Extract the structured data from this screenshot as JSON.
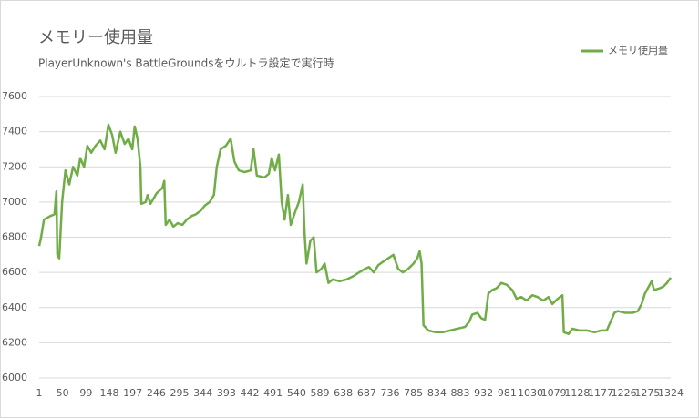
{
  "chart_data": {
    "type": "line",
    "title": "メモリー使用量",
    "subtitle": "PlayerUnknown's BattleGroundsをウルトラ設定で実行時",
    "legend": "top-right",
    "grid": true,
    "xlim": [
      1,
      1324
    ],
    "xticks": [
      1,
      50,
      99,
      148,
      197,
      246,
      295,
      344,
      393,
      442,
      491,
      540,
      589,
      638,
      687,
      736,
      785,
      834,
      883,
      932,
      981,
      1030,
      1079,
      1128,
      1177,
      1226,
      1275,
      1324
    ],
    "ylim": [
      6000,
      7600
    ],
    "yticks": [
      6000,
      6200,
      6400,
      6600,
      6800,
      7000,
      7200,
      7400,
      7600
    ],
    "x": [
      1,
      5,
      11,
      24,
      33,
      37,
      39,
      43,
      49,
      56,
      64,
      72,
      81,
      87,
      95,
      102,
      110,
      119,
      129,
      138,
      146,
      154,
      161,
      171,
      180,
      188,
      196,
      201,
      207,
      213,
      215,
      224,
      228,
      234,
      247,
      259,
      263,
      266,
      274,
      282,
      291,
      301,
      310,
      320,
      329,
      339,
      348,
      358,
      367,
      373,
      381,
      392,
      402,
      410,
      419,
      431,
      444,
      450,
      457,
      473,
      482,
      488,
      495,
      503,
      509,
      515,
      522,
      528,
      538,
      545,
      553,
      557,
      561,
      569,
      576,
      582,
      592,
      599,
      607,
      616,
      630,
      645,
      660,
      671,
      683,
      692,
      702,
      711,
      721,
      732,
      743,
      753,
      763,
      774,
      785,
      793,
      798,
      802,
      806,
      816,
      831,
      846,
      862,
      877,
      893,
      902,
      908,
      919,
      927,
      935,
      942,
      950,
      959,
      969,
      980,
      992,
      1001,
      1011,
      1022,
      1034,
      1045,
      1057,
      1068,
      1076,
      1087,
      1097,
      1100,
      1110,
      1118,
      1133,
      1148,
      1164,
      1179,
      1190,
      1198,
      1206,
      1213,
      1229,
      1244,
      1255,
      1263,
      1270,
      1278,
      1284,
      1289,
      1301,
      1309,
      1316,
      1324
    ],
    "series": [
      {
        "name": "メモリ使用量",
        "color": "#70ad47",
        "values": [
          6750,
          6800,
          6900,
          6920,
          6930,
          7060,
          6700,
          6680,
          7000,
          7180,
          7100,
          7200,
          7150,
          7250,
          7200,
          7320,
          7280,
          7320,
          7350,
          7300,
          7440,
          7380,
          7280,
          7400,
          7330,
          7360,
          7300,
          7430,
          7360,
          7200,
          6990,
          7000,
          7040,
          6990,
          7050,
          7080,
          7120,
          6870,
          6900,
          6860,
          6880,
          6870,
          6900,
          6920,
          6930,
          6950,
          6980,
          7000,
          7040,
          7200,
          7300,
          7320,
          7360,
          7230,
          7180,
          7170,
          7180,
          7300,
          7150,
          7140,
          7160,
          7250,
          7180,
          7270,
          7000,
          6900,
          7040,
          6870,
          6950,
          7000,
          7100,
          6820,
          6650,
          6780,
          6800,
          6600,
          6620,
          6650,
          6540,
          6560,
          6550,
          6560,
          6580,
          6600,
          6620,
          6630,
          6600,
          6640,
          6660,
          6680,
          6700,
          6620,
          6600,
          6620,
          6650,
          6680,
          6720,
          6650,
          6300,
          6270,
          6260,
          6260,
          6270,
          6280,
          6290,
          6320,
          6360,
          6370,
          6340,
          6330,
          6480,
          6500,
          6510,
          6540,
          6530,
          6500,
          6450,
          6460,
          6440,
          6470,
          6460,
          6440,
          6460,
          6420,
          6450,
          6470,
          6260,
          6250,
          6280,
          6270,
          6270,
          6260,
          6270,
          6270,
          6320,
          6370,
          6380,
          6370,
          6370,
          6380,
          6420,
          6480,
          6520,
          6550,
          6500,
          6510,
          6520,
          6540,
          6570
        ]
      }
    ]
  }
}
